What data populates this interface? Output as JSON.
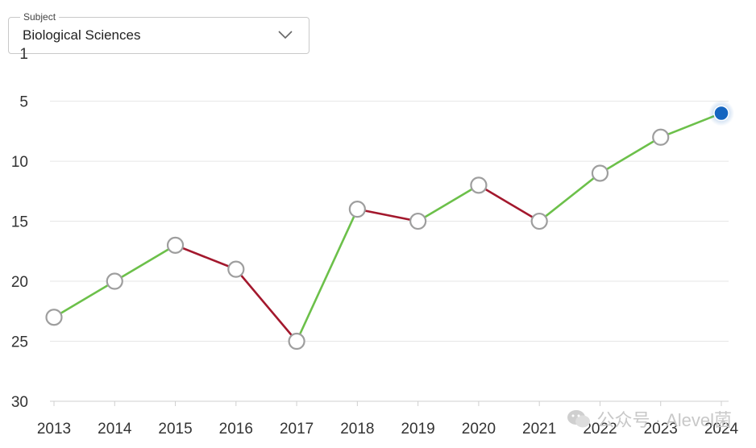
{
  "subject": {
    "label": "Subject",
    "value": "Biological Sciences"
  },
  "chart_data": {
    "type": "line",
    "x": [
      "2013",
      "2014",
      "2015",
      "2016",
      "2017",
      "2018",
      "2019",
      "2020",
      "2021",
      "2022",
      "2023",
      "2024"
    ],
    "values": [
      23,
      20,
      17,
      19,
      25,
      14,
      15,
      12,
      15,
      11,
      8,
      6
    ],
    "ylim": [
      30,
      1
    ],
    "y_inverted": true,
    "yticks": [
      1,
      5,
      10,
      15,
      20,
      25,
      30
    ],
    "grid": true,
    "colors": {
      "improve": "#6cc04a",
      "decline": "#a3182d",
      "marker_fill": "#ffffff",
      "marker_stroke": "#9e9e9e",
      "highlight": "#1565c0"
    },
    "highlight_index": 11
  },
  "watermark": {
    "text": "公众号 · Alevel菌"
  }
}
